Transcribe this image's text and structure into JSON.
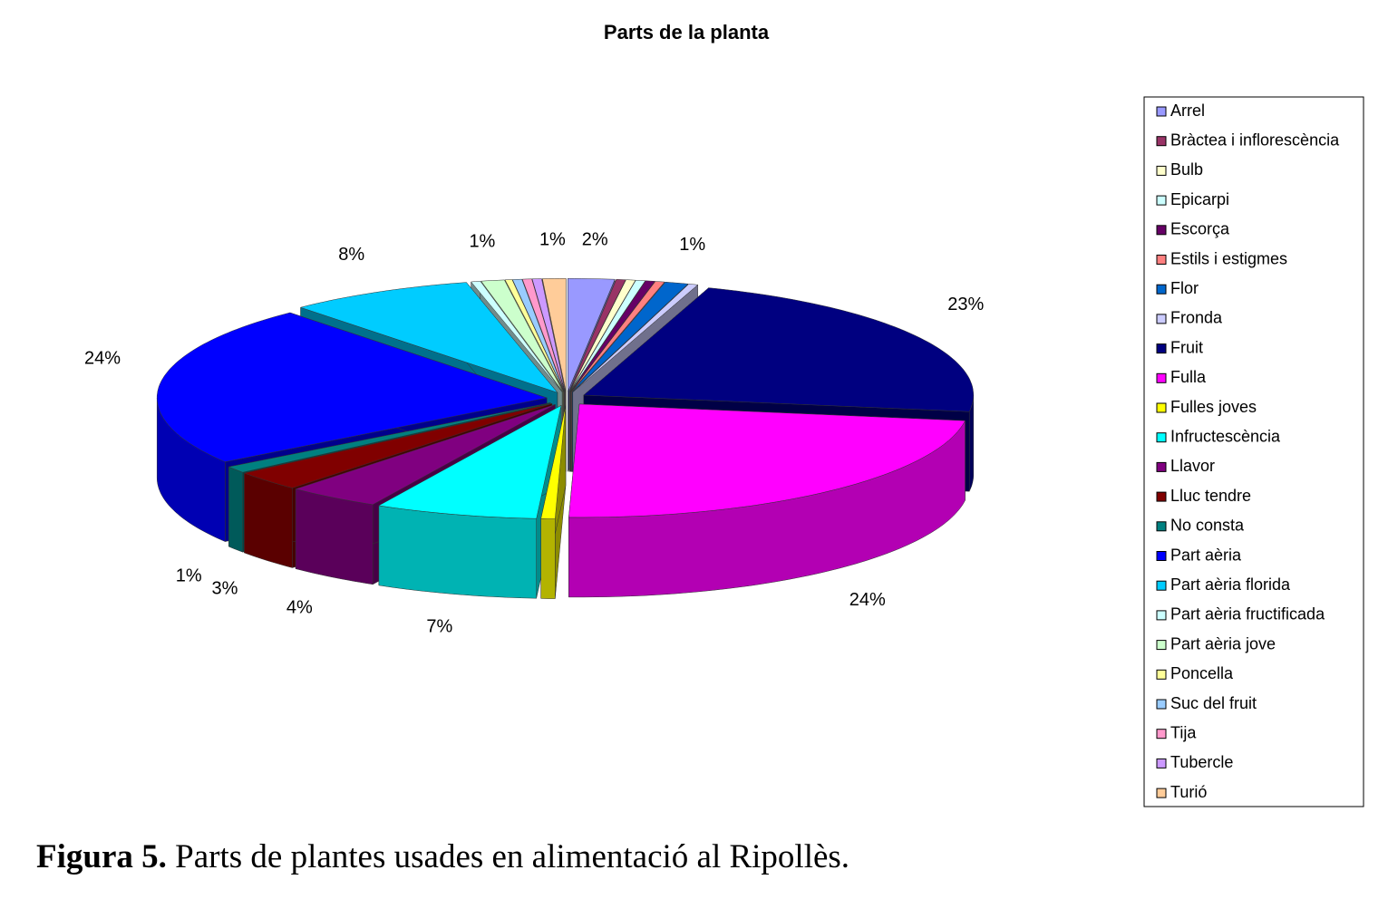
{
  "chart_data": {
    "type": "pie3d",
    "title": "Parts de la planta",
    "categories": [
      "Arrel",
      "Bràctea i inflorescència",
      "Bulb",
      "Epicarpi",
      "Escorça",
      "Estils i estigmes",
      "Flor",
      "Fronda",
      "Fruit",
      "Fulla",
      "Fulles joves",
      "Infructescència",
      "Llavor",
      "Lluc tendre",
      "No consta",
      "Part aèria",
      "Part aèria florida",
      "Part aèria fructificada",
      "Part aèria jove",
      "Poncella",
      "Suc del fruit",
      "Tija",
      "Tubercle",
      "Turió"
    ],
    "values": [
      2,
      0.4,
      0.4,
      0.4,
      0.4,
      0.4,
      1,
      0.4,
      23,
      24,
      0.6,
      7,
      4,
      3,
      1,
      24,
      8,
      0.4,
      1,
      0.3,
      0.4,
      0.4,
      0.4,
      1
    ],
    "value_labels": [
      "2%",
      null,
      null,
      null,
      null,
      null,
      "1%",
      null,
      "23%",
      "24%",
      null,
      "7%",
      "4%",
      "3%",
      "1%",
      "24%",
      "8%",
      null,
      "1%",
      null,
      null,
      null,
      null,
      "1%"
    ],
    "colors": [
      "#9999ff",
      "#993366",
      "#ffffcc",
      "#ccffff",
      "#660066",
      "#ff8080",
      "#0066cc",
      "#ccccff",
      "#000080",
      "#ff00ff",
      "#ffff00",
      "#00ffff",
      "#800080",
      "#800000",
      "#008080",
      "#0000ff",
      "#00ccff",
      "#ccffff",
      "#ccffcc",
      "#ffff99",
      "#99ccff",
      "#ff99cc",
      "#cc99ff",
      "#ffcc99"
    ],
    "legend": "right"
  },
  "caption": {
    "label": "Figura 5.",
    "text": "Parts de plantes usades en alimentació al Ripollès."
  }
}
